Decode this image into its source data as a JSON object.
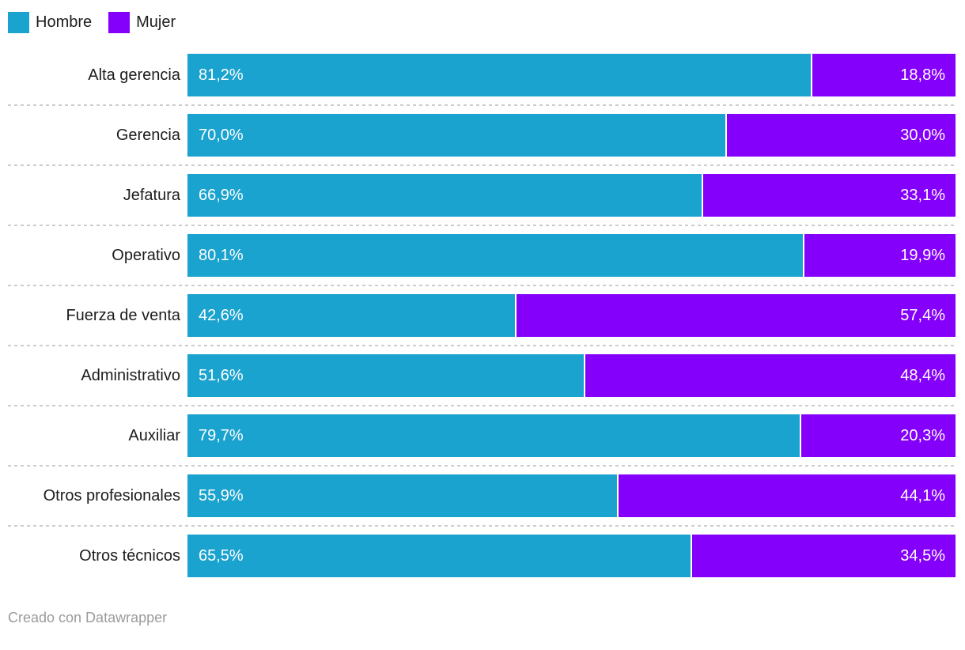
{
  "legend": {
    "items": [
      {
        "label": "Hombre",
        "color": "#1BA3CF"
      },
      {
        "label": "Mujer",
        "color": "#8400FA"
      }
    ]
  },
  "chart_data": {
    "type": "bar",
    "stacked": true,
    "orientation": "horizontal",
    "title": "",
    "categories": [
      "Alta gerencia",
      "Gerencia",
      "Jefatura",
      "Operativo",
      "Fuerza de venta",
      "Administrativo",
      "Auxiliar",
      "Otros profesionales",
      "Otros técnicos"
    ],
    "series": [
      {
        "name": "Hombre",
        "color": "#1BA3CF",
        "values": [
          81.2,
          70.0,
          66.9,
          80.1,
          42.6,
          51.6,
          79.7,
          55.9,
          65.5
        ],
        "labels": [
          "81,2%",
          "70,0%",
          "66,9%",
          "80,1%",
          "42,6%",
          "51,6%",
          "79,7%",
          "55,9%",
          "65,5%"
        ]
      },
      {
        "name": "Mujer",
        "color": "#8400FA",
        "values": [
          18.8,
          30.0,
          33.1,
          19.9,
          57.4,
          48.4,
          20.3,
          44.1,
          34.5
        ],
        "labels": [
          "18,8%",
          "30,0%",
          "33,1%",
          "19,9%",
          "57,4%",
          "48,4%",
          "20,3%",
          "44,1%",
          "34,5%"
        ]
      }
    ],
    "xlim": [
      0,
      100
    ],
    "grid": false,
    "legend_position": "top-left",
    "value_format": "percent, comma decimal",
    "separator_style": "dashed light gray between rows"
  },
  "colors": {
    "hombre": "#1BA3CF",
    "mujer": "#8400FA",
    "label_text": "#1d1d1d",
    "value_text": "#ffffff",
    "separator": "#cccccc",
    "footer_text": "#9b9b9b",
    "background": "#ffffff"
  },
  "footer": {
    "text": "Creado con Datawrapper"
  }
}
